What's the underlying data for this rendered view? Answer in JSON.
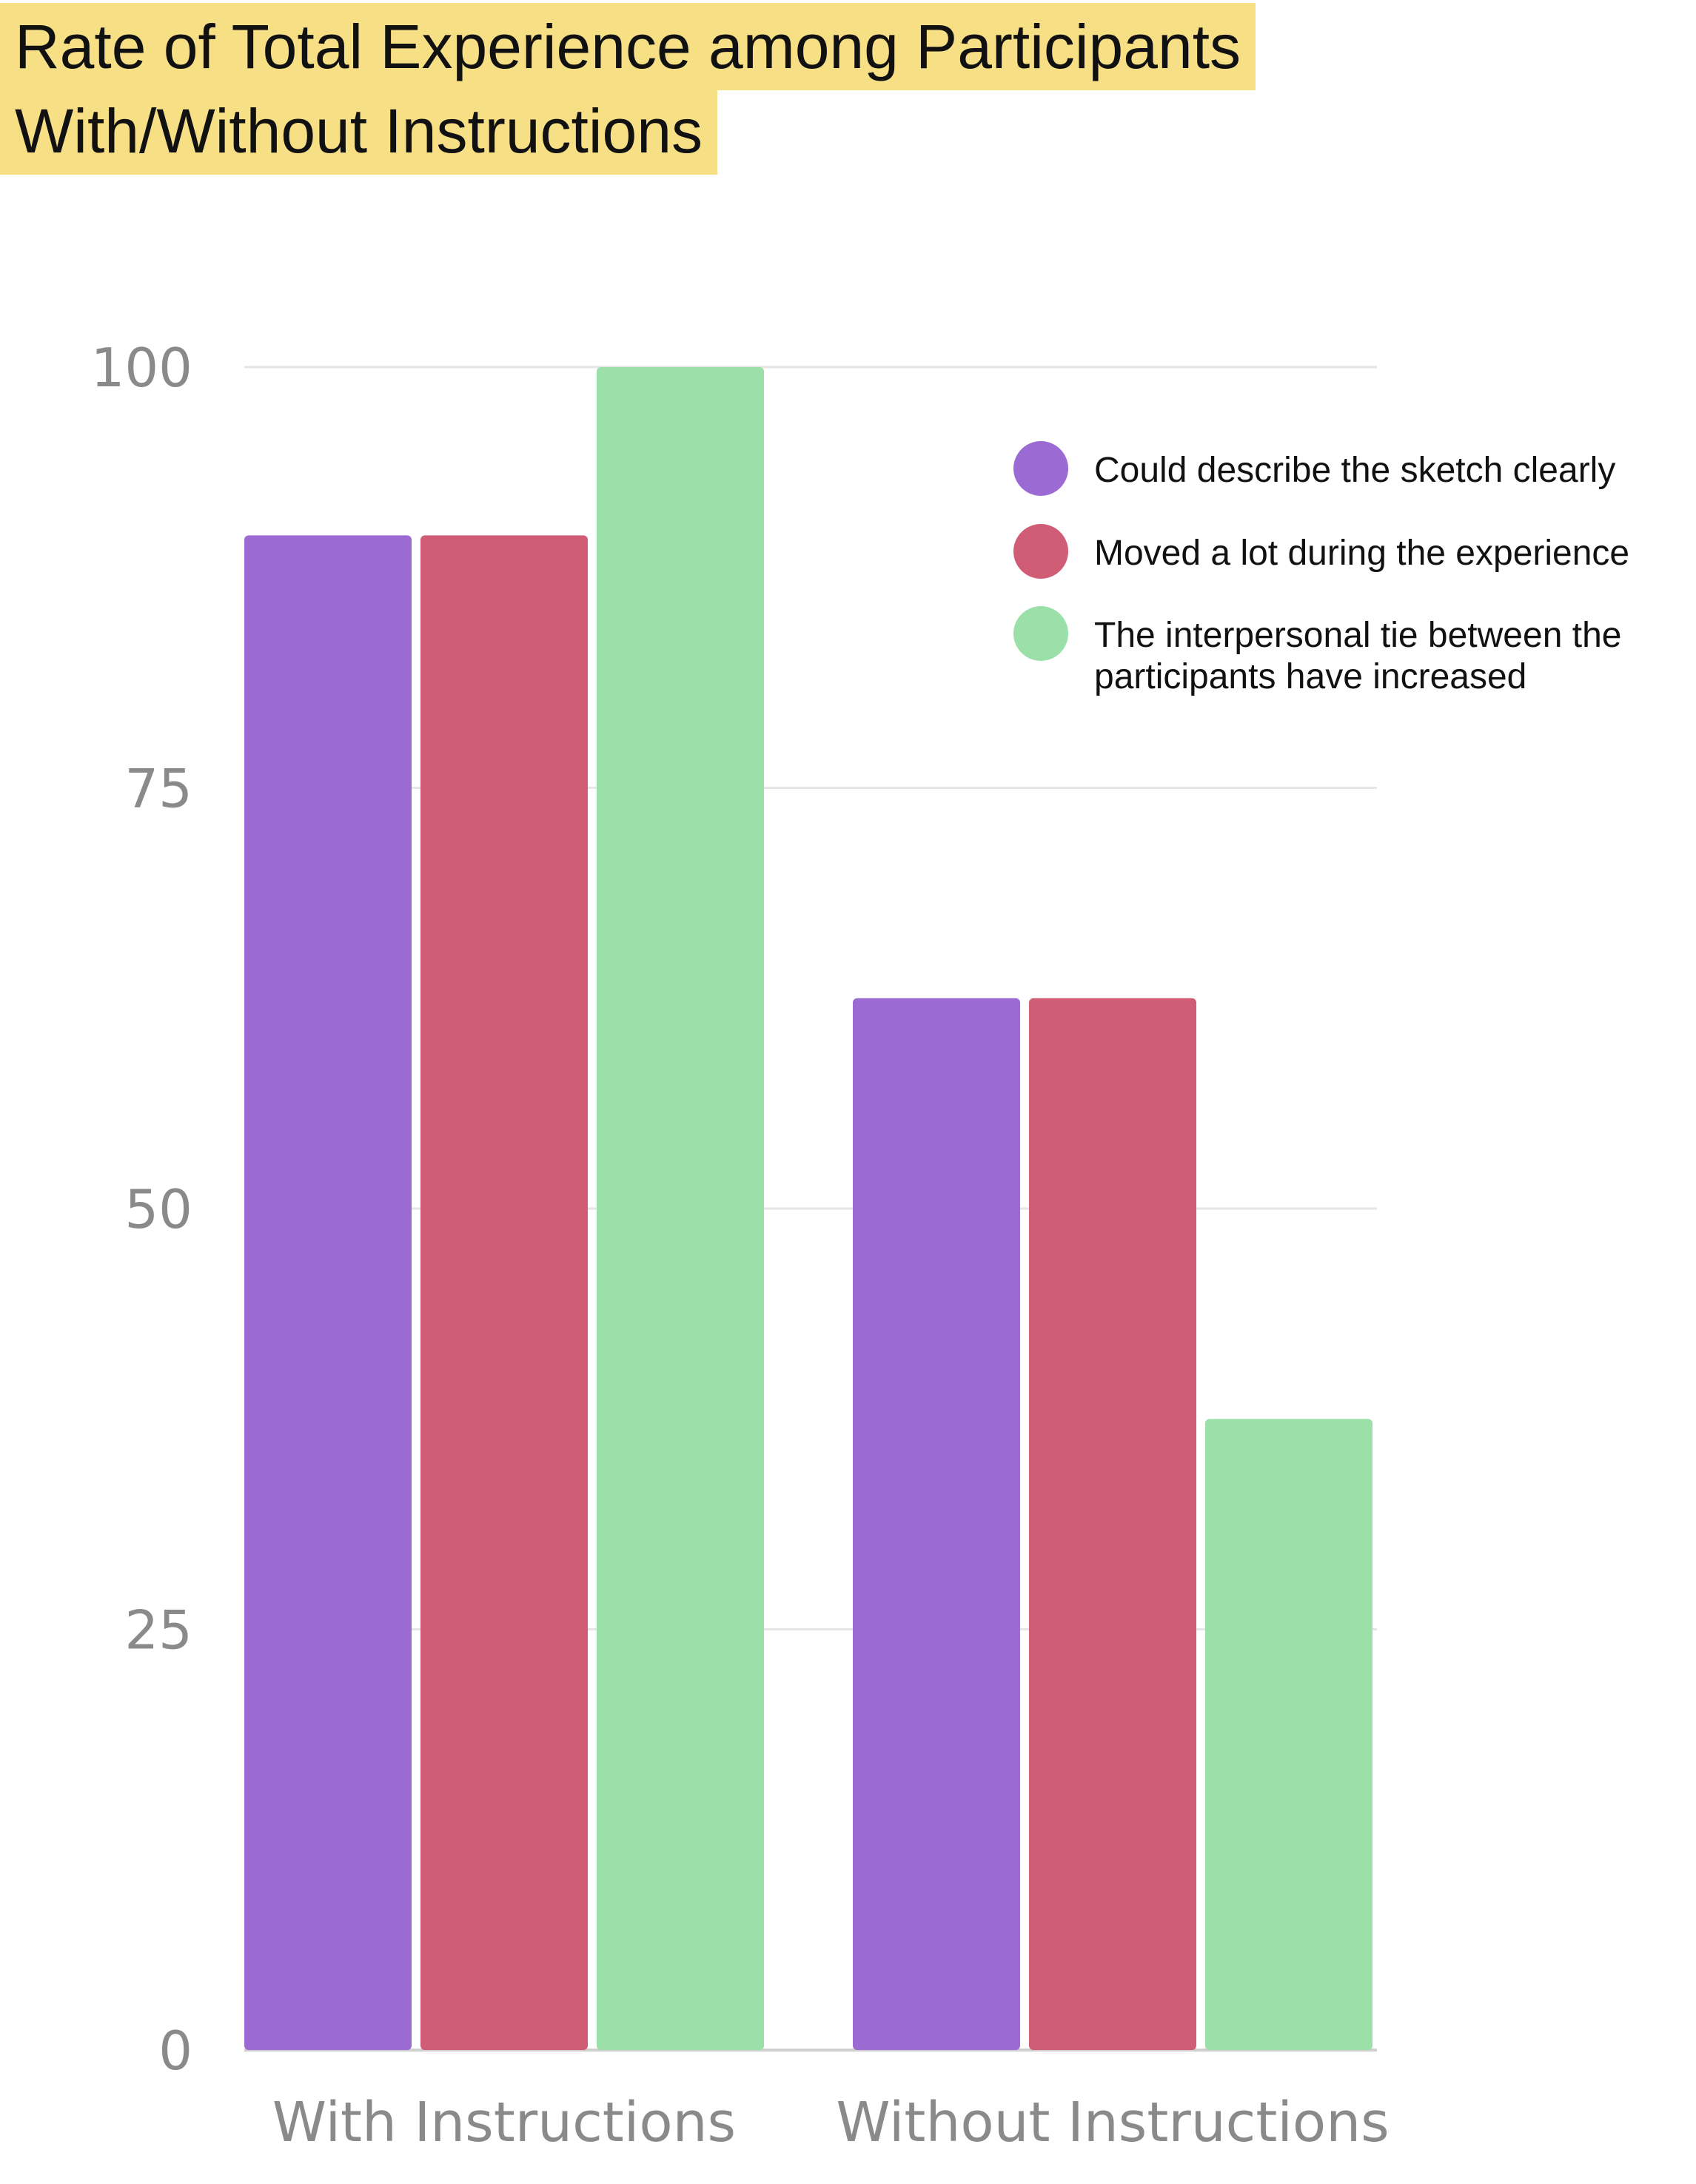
{
  "chart_data": {
    "type": "bar",
    "title": [
      "Rate of Total Experience among Participants",
      "With/Without Instructions"
    ],
    "categories": [
      "With Instructions",
      "Without Instructions"
    ],
    "series": [
      {
        "name": "Could describe the sketch clearly",
        "values": [
          90,
          62.5
        ],
        "color": "#9b6bd3"
      },
      {
        "name": "Moved a lot during the experience",
        "values": [
          90,
          62.5
        ],
        "color": "#d15c76"
      },
      {
        "name": "The interpersonal tie between the participants have increased",
        "values": [
          100,
          37.5
        ],
        "color": "#9be0a9"
      }
    ],
    "legend_lines": [
      [
        "Could describe the sketch clearly"
      ],
      [
        "Moved a lot during the experience"
      ],
      [
        "The interpersonal tie between the",
        "participants have increased"
      ]
    ],
    "yticks": [
      0,
      25,
      50,
      75,
      100
    ],
    "ylim": [
      0,
      100
    ],
    "grid": true,
    "legend_position": "top-right",
    "xlabel": "",
    "ylabel": ""
  }
}
